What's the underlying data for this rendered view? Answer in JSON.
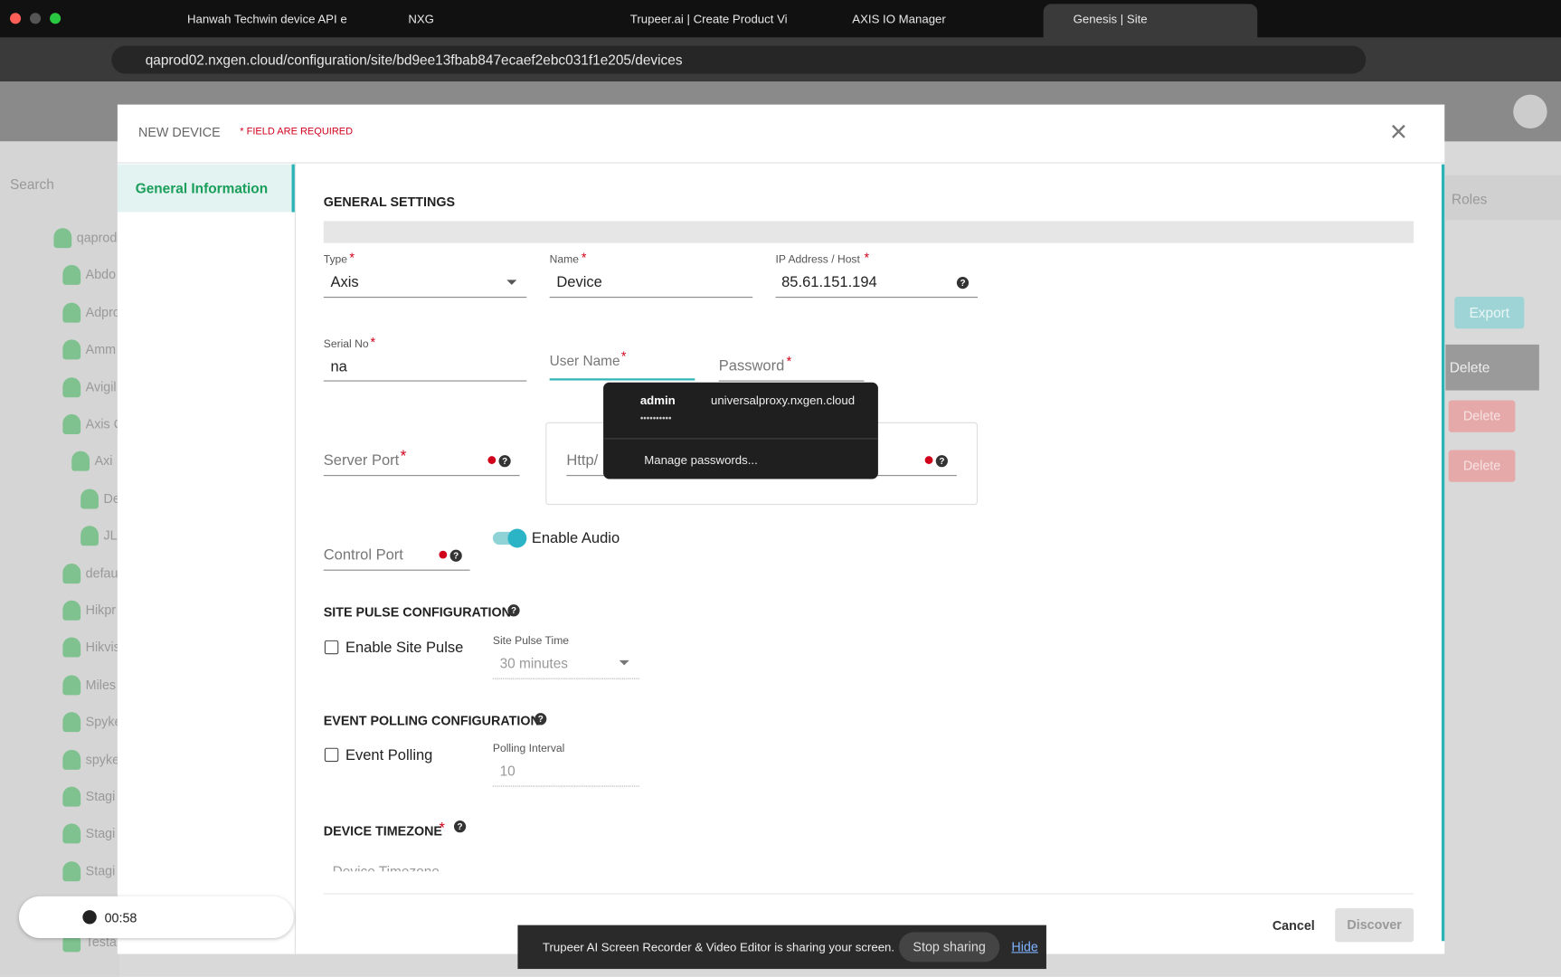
{
  "browser": {
    "tabs": [
      "Hanwah Techwin device API e",
      "NXG",
      "Trupeer.ai | Create Product Vi",
      "AXIS IO Manager",
      "Genesis | Site"
    ],
    "url": "qaprod02.nxgen.cloud/configuration/site/bd9ee13fbab847ecaef2ebc031f1e205/devices"
  },
  "background": {
    "search": "Search",
    "tree": [
      "qaprod",
      "Abdo",
      "Adpro",
      "Amm",
      "Avigil",
      "Axis C",
      "Axi",
      "De",
      "JL",
      "defau",
      "Hikpr",
      "Hikvis",
      "Miles",
      "Spyke",
      "spyke",
      "Stagi",
      "Stagi",
      "Stagi",
      "Testa"
    ],
    "roles_tab": "Roles",
    "export": "Export",
    "delete_buttons": [
      "Delete",
      "Delete",
      "Delete"
    ]
  },
  "modal": {
    "title": "NEW DEVICE",
    "required_note": "* FIELD ARE REQUIRED",
    "nav": [
      "General Information"
    ],
    "general_settings": "GENERAL SETTINGS",
    "fields": {
      "type": {
        "label": "Type",
        "mark": "*",
        "value": "Axis"
      },
      "name": {
        "label": "Name",
        "mark": "*",
        "value": "Device"
      },
      "ip": {
        "label": "IP Address / Host",
        "mark": "*",
        "value": "85.61.151.194"
      },
      "serial": {
        "label": "Serial No",
        "mark": "*",
        "value": "na"
      },
      "username": {
        "label": "User Name",
        "mark": "*"
      },
      "password": {
        "label": "Password",
        "mark": "*"
      },
      "server_port": {
        "label": "Server Port",
        "mark": "*"
      },
      "http": {
        "label": "Http/"
      },
      "control_port": {
        "label": "Control Port"
      }
    },
    "enable_audio": "Enable Audio",
    "site_pulse": {
      "heading": "SITE PULSE CONFIGURATION",
      "checkbox": "Enable Site Pulse",
      "time_label": "Site Pulse Time",
      "time_value": "30 minutes"
    },
    "event_polling": {
      "heading": "EVENT POLLING CONFIGURATION",
      "checkbox": "Event Polling",
      "interval_label": "Polling Interval",
      "interval_value": "10"
    },
    "timezone": {
      "heading": "DEVICE TIMEZONE",
      "mark": "*",
      "placeholder": "Device Timezone"
    },
    "cancel": "Cancel",
    "discover": "Discover"
  },
  "autofill": {
    "user": "admin",
    "site": "universalproxy.nxgen.cloud",
    "password": "••••••••••",
    "manage": "Manage passwords..."
  },
  "recorder": {
    "time": "00:58"
  },
  "share_bar": {
    "message": "Trupeer AI Screen Recorder & Video Editor is sharing your screen.",
    "stop": "Stop sharing",
    "hide": "Hide"
  }
}
